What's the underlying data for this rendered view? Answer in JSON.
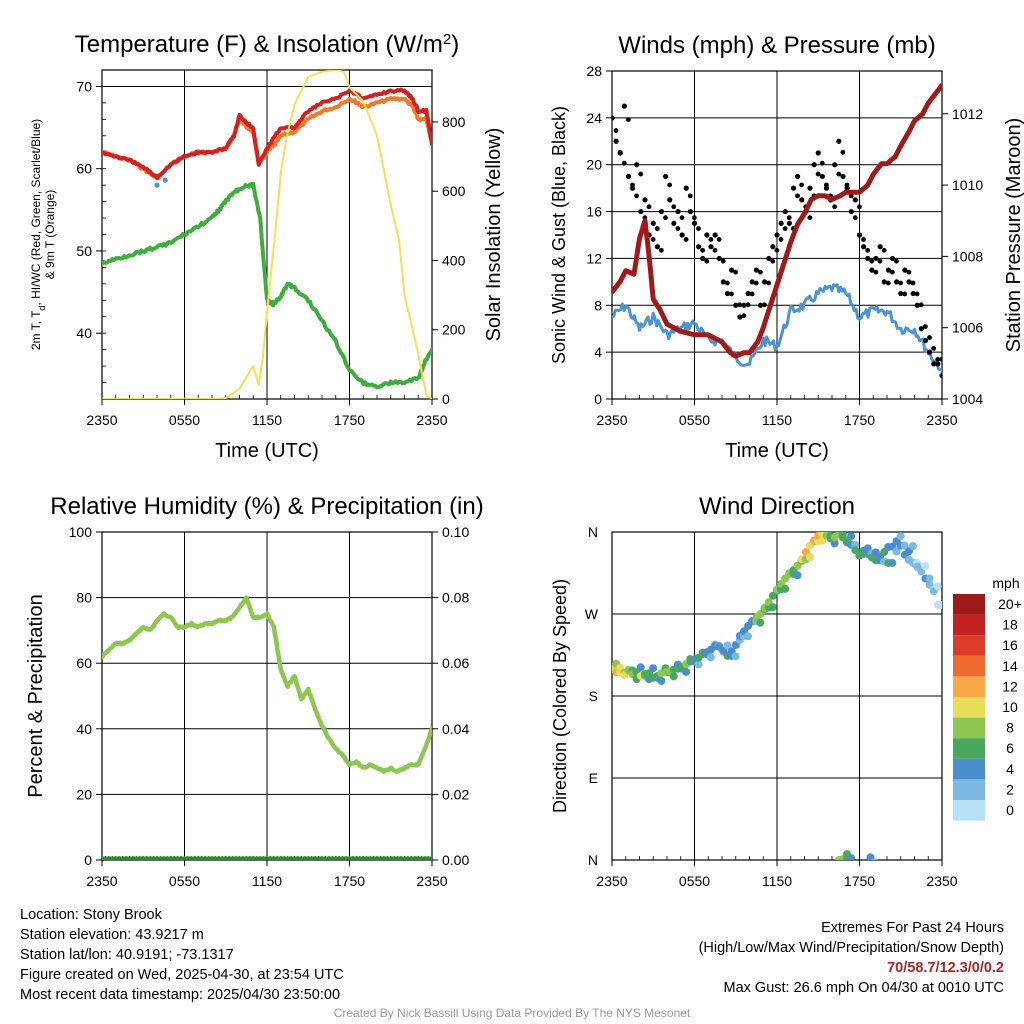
{
  "footer": {
    "location": "Location: Stony Brook",
    "elevation": "Station elevation: 43.9217 m",
    "latlon": "Station lat/lon: 40.9191; -73.1317",
    "created": "Figure created on Wed, 2025-04-30, at 23:54 UTC",
    "recent": "Most recent data timestamp: 2025/04/30 23:50:00",
    "extremes_title": "Extremes For Past 24 Hours",
    "extremes_sub": "(High/Low/Max Wind/Precipitation/Snow Depth)",
    "extremes_values": "70/58.7/12.3/0/0.2",
    "max_gust": "Max Gust: 26.6 mph On 04/30 at 0010 UTC",
    "credit": "Created By Nick Bassill Using Data Provided By The NYS Mesonet"
  },
  "colors": {
    "temp_red": "#d42020",
    "temp_orange": "#f07828",
    "dewpoint_green": "#3cae3c",
    "insolation_yellow": "#f5e050",
    "wind_blue": "#4a94d2",
    "gust_black": "#000000",
    "pressure_maroon": "#a01a1a",
    "rh_green": "#8cc850",
    "precip_green": "#2e8b2e"
  },
  "chart_data": [
    {
      "id": "temp",
      "type": "line",
      "title": "Temperature (F) & Insolation (W/m",
      "title_sup": "2",
      "title_end": ")",
      "xlabel": "Time (UTC)",
      "ylabel_lines": [
        "2m T, T",
        "d",
        ", HI/WC (Red, Green, Scarlet/Blue)",
        "& 9m T (Orange)"
      ],
      "y2label": "Solar Insolation (Yellow)",
      "x_ticks": [
        "2350",
        "0550",
        "1150",
        "1750",
        "2350"
      ],
      "x_range_hours": [
        0,
        24
      ],
      "ylim": [
        32,
        72
      ],
      "y_ticks": [
        40,
        50,
        60,
        70
      ],
      "y2lim": [
        0,
        950
      ],
      "y2_ticks": [
        0,
        200,
        400,
        600,
        800
      ],
      "series": [
        {
          "color": "temp_orange",
          "x": [
            0,
            1,
            2,
            3,
            4,
            5,
            6,
            7,
            8,
            9,
            9.6,
            10,
            10.6,
            11,
            11.4,
            12,
            12.6,
            13,
            14,
            15,
            16,
            17,
            18,
            18.6,
            19,
            20,
            21,
            22,
            22.6,
            23,
            23.6,
            24
          ],
          "y": [
            62,
            61.5,
            61,
            60,
            58.8,
            60.5,
            61.5,
            62,
            62,
            62.5,
            64,
            66,
            65,
            64.5,
            60.5,
            62,
            63,
            64,
            64.5,
            66,
            67,
            67.5,
            68.5,
            68,
            67.5,
            68,
            68.5,
            68.5,
            67.5,
            66,
            66,
            63
          ]
        },
        {
          "color": "temp_red",
          "x": [
            0,
            1,
            2,
            3,
            4,
            5,
            6,
            7,
            8,
            9,
            9.6,
            10,
            10.6,
            11,
            11.4,
            12,
            12.6,
            13,
            14,
            15,
            16,
            17,
            18,
            18.6,
            19,
            20,
            21,
            22,
            22.6,
            23,
            23.6,
            24
          ],
          "y": [
            62,
            61.5,
            61,
            60.2,
            59,
            60.5,
            61.5,
            62,
            62,
            62.5,
            64,
            66.5,
            65.5,
            65,
            60.5,
            62.5,
            64,
            65,
            65,
            67,
            68,
            68.5,
            69.5,
            69,
            68.5,
            69,
            69.5,
            69.5,
            68.5,
            67,
            67,
            63
          ]
        },
        {
          "color": "dewpoint_green",
          "x": [
            0,
            1,
            2,
            3,
            4,
            5,
            6,
            7,
            8,
            8.5,
            9,
            9.5,
            10,
            10.5,
            11,
            11.5,
            12,
            12.5,
            13,
            13.5,
            14,
            15,
            16,
            17,
            18,
            19,
            20,
            21,
            22,
            23,
            23.5,
            24
          ],
          "y": [
            48.5,
            49,
            49.5,
            50,
            50.5,
            51,
            52,
            53,
            54,
            55,
            56,
            57,
            57.5,
            58,
            58,
            54,
            44,
            43.5,
            44.5,
            46,
            45.5,
            44,
            41.5,
            39,
            35.5,
            34,
            33.5,
            34,
            34,
            34.5,
            36.5,
            38
          ]
        },
        {
          "color": "insolation_yellow",
          "axis": "y2",
          "x": [
            0,
            5,
            8,
            9,
            10,
            11,
            11.4,
            11.7,
            12,
            12.6,
            13,
            13.4,
            14,
            15,
            16,
            17,
            17.6,
            18,
            19,
            20,
            21,
            21.6,
            22,
            22.6,
            23,
            23.6,
            24
          ],
          "y": [
            0,
            0,
            0,
            2,
            30,
            95,
            40,
            120,
            250,
            480,
            650,
            750,
            850,
            930,
            945,
            950,
            945,
            900,
            860,
            760,
            560,
            460,
            300,
            200,
            130,
            10,
            0
          ]
        }
      ],
      "markers": [
        {
          "x": 4,
          "y": 58,
          "color": "wind_blue"
        },
        {
          "x": 4.6,
          "y": 58.6,
          "color": "wind_blue"
        }
      ]
    },
    {
      "id": "wind",
      "type": "line",
      "title": "Winds (mph) & Pressure (mb)",
      "xlabel": "Time (UTC)",
      "ylabel": "Sonic Wind & Gust (Blue, Black)",
      "y2label": "Station Pressure (Maroon)",
      "x_ticks": [
        "2350",
        "0550",
        "1150",
        "1750",
        "2350"
      ],
      "x_range_hours": [
        0,
        24
      ],
      "ylim": [
        0,
        28
      ],
      "y_ticks": [
        0,
        4,
        8,
        12,
        16,
        20,
        24,
        28
      ],
      "y2lim": [
        1004,
        1013.2
      ],
      "y2_ticks": [
        1004,
        1006,
        1008,
        1010,
        1012
      ],
      "series": [
        {
          "name": "wind",
          "color": "wind_blue",
          "x": [
            0,
            1,
            2,
            3,
            4,
            5,
            6,
            7,
            8,
            9,
            10,
            11,
            12,
            13,
            14,
            15,
            16,
            17,
            18,
            19,
            20,
            21,
            22,
            23,
            24
          ],
          "y": [
            7,
            8,
            6,
            7,
            5.5,
            6,
            6.5,
            5,
            5,
            3.5,
            3,
            5,
            4.5,
            7.5,
            8,
            9,
            9.5,
            9,
            7,
            7.5,
            7.5,
            6,
            6,
            4,
            2.5
          ]
        },
        {
          "name": "gust",
          "color": "gust_black",
          "type": "scatter",
          "x": [
            0,
            0.3,
            0.6,
            0.9,
            1.2,
            1.5,
            1.8,
            2.1,
            2.4,
            2.7,
            3,
            3.3,
            3.6,
            3.9,
            4.2,
            4.5,
            4.8,
            5.1,
            5.4,
            5.7,
            6,
            6.3,
            6.6,
            6.9,
            7.2,
            7.5,
            7.8,
            8.1,
            8.4,
            8.7,
            9,
            9.3,
            9.6,
            9.9,
            10.2,
            10.5,
            10.8,
            11.1,
            11.4,
            11.7,
            12,
            12.3,
            12.6,
            12.9,
            13.2,
            13.5,
            13.8,
            14.1,
            14.4,
            14.7,
            15,
            15.3,
            15.6,
            15.9,
            16.2,
            16.5,
            16.8,
            17.1,
            17.4,
            17.7,
            18,
            18.3,
            18.6,
            18.9,
            19.2,
            19.5,
            19.8,
            20.1,
            20.4,
            20.7,
            21,
            21.3,
            21.6,
            21.9,
            22.2,
            22.5,
            22.8,
            23.1,
            23.4,
            23.7,
            24
          ],
          "y": [
            24,
            22,
            21,
            25,
            19,
            18,
            20,
            16,
            17,
            14,
            15,
            13,
            16,
            19,
            17,
            15,
            16,
            14,
            18,
            16,
            15,
            13,
            12,
            14,
            13,
            14,
            12,
            10,
            9,
            11,
            8,
            7,
            8,
            9,
            10,
            11,
            8,
            10,
            12,
            13,
            14,
            15,
            16,
            15,
            18,
            19,
            17,
            16,
            18,
            20,
            21,
            19,
            18,
            17,
            20,
            22,
            19,
            18,
            16,
            17,
            14,
            13,
            12,
            11,
            12,
            13,
            10,
            11,
            12,
            10,
            9,
            11,
            10,
            9,
            8,
            6,
            5,
            4,
            3,
            3,
            2
          ]
        },
        {
          "name": "pressure",
          "color": "pressure_maroon",
          "axis": "y2",
          "x": [
            0,
            0.6,
            1,
            1.6,
            2,
            2.4,
            2.7,
            3,
            3.5,
            4,
            5,
            6,
            7,
            8,
            8.6,
            9,
            9.6,
            10,
            10.6,
            11,
            11.5,
            12,
            12.5,
            13,
            13.5,
            14,
            14.5,
            15,
            15.5,
            16,
            16.6,
            17,
            17.6,
            18,
            18.6,
            19,
            19.6,
            20,
            20.6,
            21,
            21.6,
            22,
            22.6,
            23,
            23.6,
            24
          ],
          "y": [
            1007,
            1007.3,
            1007.6,
            1007.5,
            1008.5,
            1009,
            1008,
            1006.8,
            1006.5,
            1006.1,
            1005.9,
            1005.8,
            1005.8,
            1005.6,
            1005.3,
            1005.2,
            1005.3,
            1005.3,
            1005.6,
            1006,
            1006.6,
            1007.2,
            1007.8,
            1008.4,
            1008.9,
            1009.2,
            1009.6,
            1009.7,
            1009.7,
            1009.6,
            1009.7,
            1009.8,
            1009.8,
            1009.8,
            1010,
            1010.3,
            1010.6,
            1010.6,
            1010.8,
            1011.1,
            1011.5,
            1011.8,
            1012,
            1012.3,
            1012.6,
            1012.8
          ]
        }
      ]
    },
    {
      "id": "rh",
      "type": "line",
      "title": "Relative Humidity (%) & Precipitation (in)",
      "ylabel": "Percent & Precipitation",
      "x_ticks": [
        "2350",
        "0550",
        "1150",
        "1750",
        "2350"
      ],
      "x_range_hours": [
        0,
        24
      ],
      "ylim": [
        0,
        100
      ],
      "y_ticks": [
        0,
        20,
        40,
        60,
        80,
        100
      ],
      "y2lim": [
        0,
        0.1
      ],
      "y2_ticks": [
        "0.00",
        "0.02",
        "0.04",
        "0.06",
        "0.08",
        "0.10"
      ],
      "series": [
        {
          "name": "rh",
          "color": "rh_green",
          "x": [
            0,
            0.5,
            1,
            1.5,
            2,
            2.5,
            3,
            3.5,
            4,
            4.5,
            5,
            5.5,
            6,
            6.5,
            7,
            7.5,
            8,
            8.5,
            9,
            9.5,
            10,
            10.5,
            11,
            11.5,
            12,
            12.5,
            13,
            13.5,
            14,
            14.5,
            15,
            15.5,
            16,
            16.5,
            17,
            17.5,
            18,
            18.5,
            19,
            19.5,
            20,
            20.5,
            21,
            21.5,
            22,
            22.5,
            23,
            23.5,
            24
          ],
          "y": [
            62,
            64,
            66,
            66,
            67,
            69,
            71,
            70,
            73,
            75,
            74,
            71,
            71,
            72,
            71,
            72,
            72,
            73,
            73,
            74,
            77,
            80,
            74,
            74,
            75,
            71,
            58,
            53,
            56,
            49,
            52,
            46,
            41,
            37,
            34,
            32,
            29,
            30,
            28,
            29,
            28,
            27,
            28,
            27,
            28,
            29,
            29,
            34,
            40
          ]
        },
        {
          "name": "precip",
          "color": "precip_green",
          "axis": "y2",
          "x": [
            0,
            24
          ],
          "y": [
            0,
            0
          ]
        }
      ]
    },
    {
      "id": "dir",
      "type": "scatter",
      "title": "Wind Direction",
      "ylabel": "Direction (Colored By Speed)",
      "x_ticks": [
        "2350",
        "0550",
        "1150",
        "1750",
        "2350"
      ],
      "x_range_hours": [
        0,
        24
      ],
      "y_ticks": [
        "N",
        "E",
        "S",
        "W",
        "N"
      ],
      "ylim": [
        0,
        360
      ],
      "legend_title": "mph",
      "legend_labels": [
        "20+",
        "18",
        "16",
        "14",
        "12",
        "10",
        "8",
        "6",
        "4",
        "2",
        "0"
      ],
      "legend_colors": [
        "#9e1a1a",
        "#c42121",
        "#dc3a2a",
        "#ee6a2e",
        "#f8a848",
        "#e8dd58",
        "#8cc850",
        "#4aa85e",
        "#4a8fcd",
        "#7bb8e3",
        "#b8e0f6"
      ],
      "x": [
        0,
        0.3,
        0.6,
        0.9,
        1.2,
        1.5,
        1.8,
        2.1,
        2.4,
        2.7,
        3,
        3.3,
        3.6,
        3.9,
        4.2,
        4.5,
        4.8,
        5.1,
        5.4,
        5.7,
        6,
        6.3,
        6.6,
        6.9,
        7.2,
        7.5,
        7.8,
        8.1,
        8.4,
        8.7,
        9,
        9.3,
        9.6,
        9.9,
        10.2,
        10.5,
        10.8,
        11.1,
        11.4,
        11.7,
        12,
        12.3,
        12.6,
        12.9,
        13.2,
        13.5,
        13.8,
        14.1,
        14.4,
        14.7,
        15,
        15.3,
        15.6,
        15.9,
        16.2,
        16.5,
        16.8,
        17.1,
        17.4,
        17.7,
        18,
        18.3,
        18.6,
        18.9,
        19.2,
        19.5,
        19.8,
        20.1,
        20.4,
        20.7,
        21,
        21.3,
        21.6,
        21.9,
        22.2,
        22.5,
        22.8,
        23.1,
        23.4,
        23.7,
        16.5,
        16.8,
        17.1,
        18.8
      ],
      "y": [
        210,
        206,
        211,
        203,
        208,
        204,
        206,
        202,
        204,
        205,
        200,
        202,
        205,
        206,
        207,
        209,
        210,
        212,
        215,
        218,
        220,
        222,
        226,
        228,
        231,
        235,
        234,
        230,
        224,
        229,
        236,
        246,
        251,
        257,
        262,
        266,
        270,
        277,
        283,
        290,
        297,
        303,
        309,
        314,
        318,
        323,
        330,
        338,
        345,
        350,
        356,
        358,
        356,
        353,
        354,
        358,
        354,
        350,
        346,
        340,
        334,
        336,
        342,
        332,
        329,
        333,
        338,
        326,
        344,
        350,
        345,
        335,
        339,
        326,
        322,
        317,
        309,
        302,
        295,
        280,
        0,
        1,
        2,
        3
      ],
      "speed": [
        10,
        11,
        10,
        9,
        8,
        7,
        6,
        10,
        6,
        5,
        5,
        6,
        7,
        7,
        8,
        6,
        5,
        6,
        7,
        6,
        4,
        5,
        5,
        4,
        3,
        4,
        3,
        3,
        5,
        4,
        3,
        4,
        4,
        4,
        4,
        7,
        8,
        8,
        7,
        6,
        8,
        7,
        8,
        8,
        6,
        8,
        9,
        11,
        10,
        12,
        11,
        9,
        8,
        6,
        8,
        7,
        6,
        5,
        4,
        6,
        5,
        6,
        4,
        6,
        6,
        4,
        6,
        5,
        3,
        4,
        4,
        3,
        3,
        2,
        2,
        1,
        3,
        2,
        1,
        0,
        7,
        8,
        6,
        3
      ]
    }
  ]
}
